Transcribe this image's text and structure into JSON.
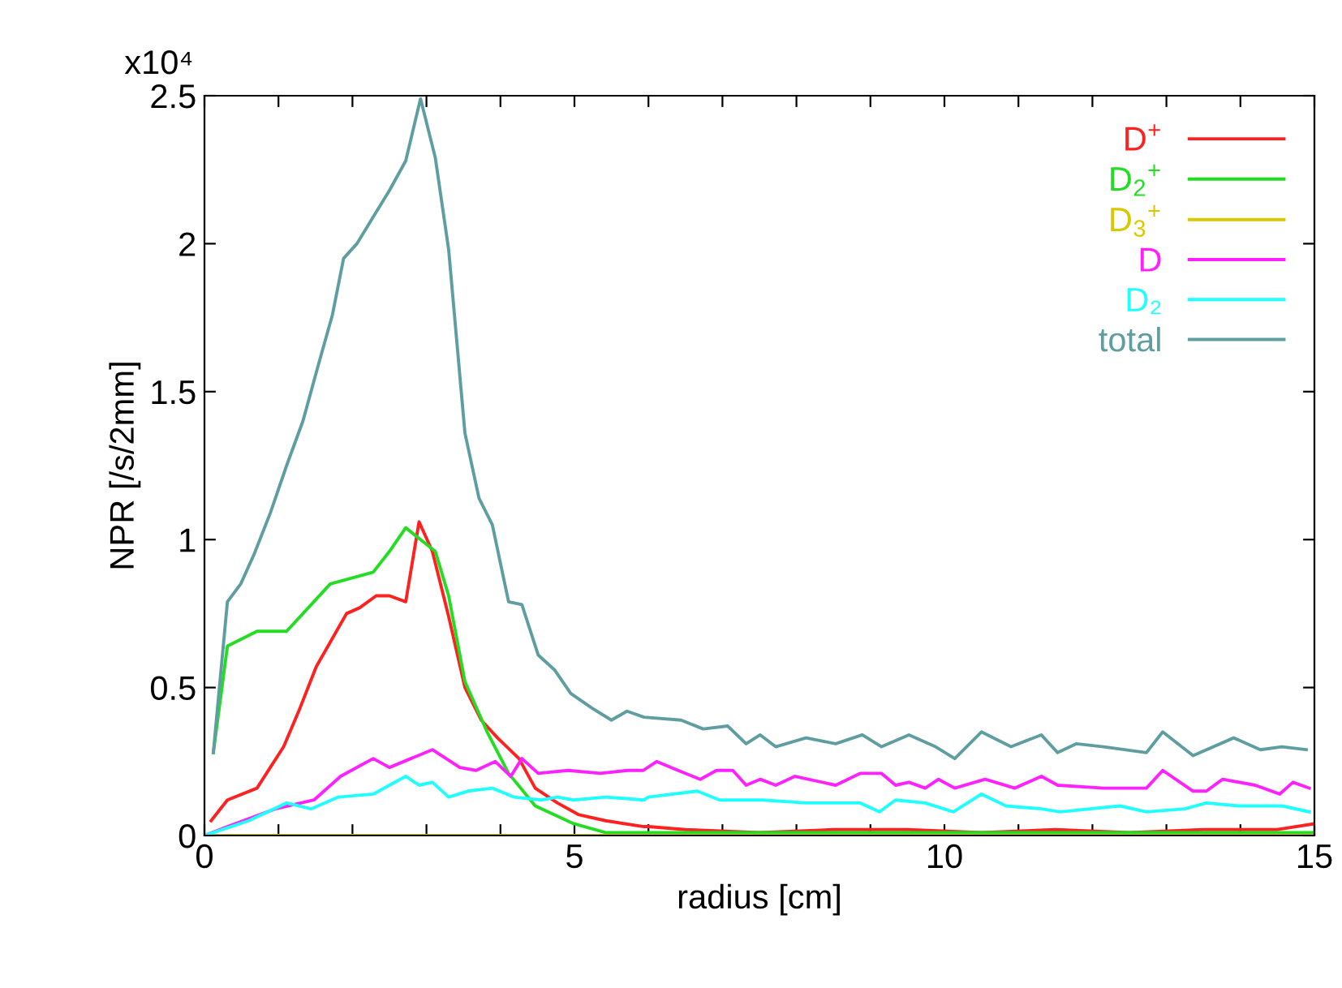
{
  "chart_data": {
    "type": "line",
    "xlabel": "radius [cm]",
    "ylabel": "NPR [/s/2mm]",
    "annotations": [
      "x10⁴"
    ],
    "xlim": [
      0,
      15
    ],
    "xticks": [
      0,
      {
        "value": 1,
        "label": null
      },
      {
        "value": 2,
        "label": null
      },
      {
        "value": 3,
        "label": null
      },
      {
        "value": 4,
        "label": null
      },
      5,
      {
        "value": 6,
        "label": null
      },
      {
        "value": 7,
        "label": null
      },
      {
        "value": 8,
        "label": null
      },
      {
        "value": 9,
        "label": null
      },
      10,
      {
        "value": 11,
        "label": null
      },
      {
        "value": 12,
        "label": null
      },
      {
        "value": 13,
        "label": null
      },
      {
        "value": 14,
        "label": null
      },
      15
    ],
    "ylim": [
      0,
      2.5
    ],
    "yticks": [
      0,
      0.5,
      1,
      1.5,
      2,
      2.5
    ],
    "grid": false,
    "legend": "top right",
    "marker": "none",
    "line_style": "solid",
    "series": [
      {
        "name": "D$^{+}$",
        "color": "#ff2020",
        "x": [
          0.09,
          0.31,
          0.71,
          1.07,
          1.29,
          1.51,
          1.92,
          2.1,
          2.32,
          2.5,
          2.72,
          2.9,
          3.08,
          3.3,
          3.52,
          3.74,
          3.96,
          4.25,
          4.47,
          4.77,
          5.06,
          5.42,
          5.94,
          6.0,
          6.5,
          7.5,
          8.5,
          9.5,
          10.5,
          11.5,
          12.5,
          13.5,
          14.5,
          15
        ],
        "values": [
          0.05,
          0.12,
          0.16,
          0.3,
          0.43,
          0.57,
          0.75,
          0.77,
          0.81,
          0.81,
          0.79,
          1.06,
          0.96,
          0.74,
          0.5,
          0.39,
          0.33,
          0.26,
          0.16,
          0.11,
          0.07,
          0.05,
          0.03,
          0.03,
          0.02,
          0.01,
          0.02,
          0.02,
          0.01,
          0.02,
          0.01,
          0.02,
          0.02,
          0.04
        ]
      },
      {
        "name": "D$_{2}$$^{+}$",
        "color": "#22dd22",
        "x": [
          0.12,
          0.31,
          0.71,
          1.11,
          1.7,
          1.99,
          2.28,
          2.5,
          2.72,
          3.12,
          3.3,
          3.52,
          3.82,
          4.11,
          4.47,
          4.99,
          5.42,
          5.94,
          7,
          9,
          11,
          13,
          15
        ],
        "values": [
          0.28,
          0.64,
          0.69,
          0.69,
          0.85,
          0.87,
          0.89,
          0.96,
          1.04,
          0.96,
          0.81,
          0.52,
          0.35,
          0.21,
          0.1,
          0.04,
          0.01,
          0.01,
          0.01,
          0.01,
          0.01,
          0.01,
          0.01
        ]
      },
      {
        "name": "D$_{3}$$^{+}$",
        "color": "#d8c800",
        "x": [
          0,
          5,
          10,
          15
        ],
        "values": [
          0,
          0,
          0,
          0
        ]
      },
      {
        "name": "D",
        "color": "#ff20ff",
        "x": [
          0,
          0.31,
          0.96,
          1.48,
          1.84,
          2.28,
          2.5,
          2.79,
          3.08,
          3.45,
          3.67,
          3.93,
          4.14,
          4.29,
          4.51,
          4.91,
          5.35,
          5.72,
          5.93,
          6.11,
          6.4,
          6.7,
          6.92,
          7.14,
          7.32,
          7.51,
          7.72,
          7.98,
          8.53,
          8.86,
          9.15,
          9.34,
          9.52,
          9.74,
          9.92,
          10.14,
          10.55,
          10.95,
          11.31,
          11.53,
          12.15,
          12.73,
          12.95,
          13.36,
          13.54,
          13.76,
          14.2,
          14.53,
          14.71,
          14.93
        ],
        "values": [
          0,
          0.03,
          0.09,
          0.12,
          0.2,
          0.26,
          0.23,
          0.26,
          0.29,
          0.23,
          0.22,
          0.25,
          0.2,
          0.26,
          0.21,
          0.22,
          0.21,
          0.22,
          0.22,
          0.25,
          0.22,
          0.19,
          0.22,
          0.22,
          0.17,
          0.19,
          0.17,
          0.2,
          0.17,
          0.21,
          0.21,
          0.17,
          0.18,
          0.16,
          0.19,
          0.16,
          0.19,
          0.16,
          0.2,
          0.17,
          0.16,
          0.16,
          0.22,
          0.15,
          0.15,
          0.19,
          0.17,
          0.14,
          0.18,
          0.16
        ]
      },
      {
        "name": "D₂",
        "color": "#20ffff",
        "x": [
          0,
          0.6,
          1.11,
          1.44,
          1.81,
          2.28,
          2.72,
          2.9,
          3.08,
          3.3,
          3.56,
          3.89,
          4.18,
          4.55,
          4.77,
          4.99,
          5.42,
          5.94,
          6.0,
          6.66,
          6.96,
          7.54,
          8.13,
          8.86,
          9.12,
          9.34,
          9.74,
          10.12,
          10.5,
          10.83,
          11.31,
          11.56,
          12.37,
          12.73,
          13.25,
          13.54,
          13.98,
          14.56,
          14.93
        ],
        "values": [
          0,
          0.05,
          0.11,
          0.09,
          0.13,
          0.14,
          0.2,
          0.17,
          0.18,
          0.13,
          0.15,
          0.16,
          0.13,
          0.12,
          0.13,
          0.12,
          0.13,
          0.12,
          0.13,
          0.15,
          0.12,
          0.12,
          0.11,
          0.11,
          0.08,
          0.12,
          0.11,
          0.08,
          0.14,
          0.1,
          0.09,
          0.08,
          0.1,
          0.08,
          0.09,
          0.11,
          0.1,
          0.1,
          0.08
        ]
      },
      {
        "name": "total",
        "color": "#5f9ea0",
        "x": [
          0.12,
          0.31,
          0.49,
          0.67,
          0.89,
          1.11,
          1.33,
          1.55,
          1.73,
          1.88,
          2.06,
          2.28,
          2.5,
          2.72,
          2.92,
          3.12,
          3.3,
          3.52,
          3.71,
          3.89,
          4.11,
          4.29,
          4.51,
          4.73,
          4.95,
          5.24,
          5.5,
          5.71,
          5.94,
          6.44,
          6.74,
          7.07,
          7.32,
          7.51,
          7.72,
          8.13,
          8.53,
          8.89,
          9.15,
          9.52,
          9.88,
          10.14,
          10.5,
          10.9,
          11.31,
          11.53,
          11.78,
          12.15,
          12.73,
          12.95,
          13.36,
          13.91,
          14.27,
          14.56,
          14.89
        ],
        "values": [
          0.28,
          0.79,
          0.85,
          0.95,
          1.09,
          1.25,
          1.4,
          1.6,
          1.76,
          1.95,
          2.0,
          2.09,
          2.18,
          2.28,
          2.49,
          2.29,
          1.98,
          1.36,
          1.14,
          1.05,
          0.79,
          0.78,
          0.61,
          0.56,
          0.48,
          0.43,
          0.39,
          0.42,
          0.4,
          0.39,
          0.36,
          0.37,
          0.31,
          0.34,
          0.3,
          0.33,
          0.31,
          0.34,
          0.3,
          0.34,
          0.3,
          0.26,
          0.35,
          0.3,
          0.34,
          0.28,
          0.31,
          0.3,
          0.28,
          0.35,
          0.27,
          0.33,
          0.29,
          0.3,
          0.29
        ]
      }
    ]
  }
}
